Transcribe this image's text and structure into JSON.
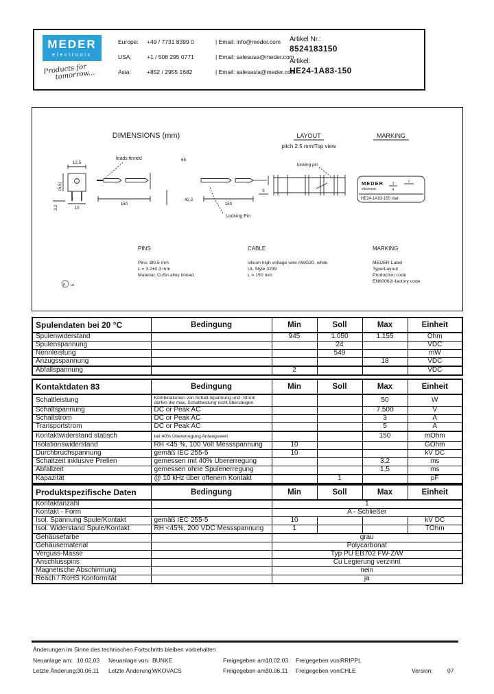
{
  "header": {
    "logo": {
      "line1": "MEDER",
      "line2": "electronic",
      "tagline1": "Products for",
      "tagline2": "tomorrow...",
      "brand_blue": "#2b9fd8"
    },
    "contacts": [
      {
        "region": "Europe:",
        "phone": "+49 / 7731 8399 0",
        "email": "| Email: info@meder.com"
      },
      {
        "region": "USA:",
        "phone": "+1 / 508 295 0771",
        "email": "| Email: salesusa@meder.com"
      },
      {
        "region": "Asia:",
        "phone": "+852 / 2955 1682",
        "email": "| Email: salesasia@meder.com"
      }
    ],
    "artikel_nr_label": "Artikel Nr.:",
    "artikel_nr": "8524183150",
    "artikel_label": "Artikel:",
    "artikel": "HE24-1A83-150"
  },
  "diagram": {
    "dimensions_title": "DIMENSIONS (mm)",
    "layout_title": "LAYOUT",
    "layout_subtitle": "pitch 2.5 mm/Top view",
    "layout_pin_note": "locking pin",
    "marking_title": "MARKING",
    "leads_note": "leads tinned",
    "locking_pin": "Locking Pin",
    "dims": {
      "body_w": "12,5",
      "body_h": "(5,5)",
      "pin_pitch": "10",
      "pin_len": "3,2",
      "lead_left": "150",
      "total": "65",
      "mid": "42,5",
      "lead_right": "150",
      "lock_offset": "5"
    },
    "mark_box": {
      "brand": "MEDER",
      "brand_sub": "electronic",
      "frac_top": "3",
      "frac_bot": "4",
      "frac_r": "1",
      "type_line": "HE24-1A83-150   /dat"
    },
    "pins": {
      "title": "PINS",
      "lines": [
        "Pins:  Ø0.5 mm",
        "L = 3.2±0.3 mm",
        "Material: CuSn alloy tinned"
      ]
    },
    "cable": {
      "title": "CABLE",
      "lines": [
        "silicon high voltage wire AWG20, white",
        "UL Style 3239",
        "L = 150 mm"
      ]
    },
    "marking": {
      "title": "MARKING",
      "lines": [
        "MEDER-Label",
        "Type/Layout",
        "Production code",
        "EN60062/-factory code"
      ]
    }
  },
  "tables": [
    {
      "title": "Spulendaten bei 20 °C",
      "headers": [
        "Bedingung",
        "Min",
        "Soll",
        "Max",
        "Einheit"
      ],
      "rows": [
        {
          "label": "Spulenwiderstand",
          "bedingung": "",
          "min": "945",
          "soll": "1.050",
          "max": "1.155",
          "einheit": "Ohm"
        },
        {
          "label": "Spulenspannung",
          "bedingung": "",
          "min": "",
          "soll": "24",
          "max": "",
          "einheit": "VDC"
        },
        {
          "label": "Nennleistung",
          "bedingung": "",
          "min": "",
          "soll": "549",
          "max": "",
          "einheit": "mW"
        },
        {
          "label": "Anzugsspannung",
          "bedingung": "",
          "min": "",
          "soll": "",
          "max": "18",
          "einheit": "VDC"
        },
        {
          "label": "Abfallspannung",
          "bedingung": "",
          "min": "2",
          "soll": "",
          "max": "",
          "einheit": "VDC",
          "thick_top": true
        }
      ]
    },
    {
      "title": "Kontaktdaten  83",
      "headers": [
        "Bedingung",
        "Min",
        "Soll",
        "Max",
        "Einheit"
      ],
      "rows": [
        {
          "label": "Schaltleistung",
          "bedingung": "Kombinationen von Schalt-Spannung und -Strom dürfen die max. Schaltleistung nicht übersteigen",
          "small": true,
          "min": "",
          "soll": "",
          "max": "50",
          "einheit": "W"
        },
        {
          "label": "Schaltspannung",
          "bedingung": "DC or Peak AC",
          "min": "",
          "soll": "",
          "max": "7.500",
          "einheit": "V"
        },
        {
          "label": "Schaltstrom",
          "bedingung": "DC or Peak AC",
          "min": "",
          "soll": "",
          "max": "3",
          "einheit": "A"
        },
        {
          "label": "Transportstrom",
          "bedingung": "DC or Peak AC",
          "min": "",
          "soll": "",
          "max": "5",
          "einheit": "A"
        },
        {
          "label": "Kontaktwiderstand statisch",
          "bedingung": "bei 40% Übererregung Anfangswert",
          "small": true,
          "min": "",
          "soll": "",
          "max": "150",
          "einheit": "mOhm",
          "thick_top": true
        },
        {
          "label": "Isolationswiderstand",
          "bedingung": "RH <45 %, 100 Volt Messspannung",
          "min": "10",
          "soll": "",
          "max": "",
          "einheit": "GOhm"
        },
        {
          "label": "Durchbruchspannung",
          "bedingung": "gemäß  IEC 255-5",
          "min": "10",
          "soll": "",
          "max": "",
          "einheit": "kV DC"
        },
        {
          "label": "Schaltzeit inklusive Prellen",
          "bedingung": "gemessen mit 40% Übererregung",
          "min": "",
          "soll": "",
          "max": "3,2",
          "einheit": "ms"
        },
        {
          "label": "Abfallzeit",
          "bedingung": "gemessen ohne Spulenerregung",
          "min": "",
          "soll": "",
          "max": "1,5",
          "einheit": "ms"
        },
        {
          "label": "Kapazität",
          "bedingung": "@ 10 kHz über offenem Kontakt",
          "min": "",
          "soll": "1",
          "max": "",
          "einheit": "pF",
          "thick_top": true
        }
      ]
    },
    {
      "title": "Produktspezifische Daten",
      "headers": [
        "Bedingung",
        "Min",
        "Soll",
        "Max",
        "Einheit"
      ],
      "rows": [
        {
          "label": "Kontaktanzahl",
          "bedingung": "",
          "span": "1"
        },
        {
          "label": "Kontakt - Form",
          "bedingung": "",
          "span": "A - Schließer"
        },
        {
          "label": "Isol. Spannung Spule/Kontakt",
          "bedingung": "gemäß  IEC 255-5",
          "min": "10",
          "soll": "",
          "max": "",
          "einheit": "kV DC"
        },
        {
          "label": "Isol. Widerstand Spule/Kontakt",
          "bedingung": "RH <45%, 200 VDC Messspannung",
          "min": "1",
          "soll": "",
          "max": "",
          "einheit": "TOhm"
        },
        {
          "label": "Gehäusefarbe",
          "bedingung": "",
          "span": "grau",
          "thick_top": true
        },
        {
          "label": "Gehäusematerial",
          "bedingung": "",
          "span": "Polycarbonat"
        },
        {
          "label": "Verguss-Masse",
          "bedingung": "",
          "span": "Typ PU EB702 FW-Z/W"
        },
        {
          "label": "Anschlusspins",
          "bedingung": "",
          "span": "Cu Legierung verzinnt"
        },
        {
          "label": "Magnetische Abschirmung",
          "bedingung": "",
          "span": "nein"
        },
        {
          "label": "Reach / RoHS Konformität",
          "bedingung": "",
          "span": "ja"
        }
      ]
    }
  ],
  "footer": {
    "disclaimer": "Änderungen im Sinne des technischen Fortschritts bleiben vorbehalten",
    "rows": [
      {
        "l1": "Neuanlage am:",
        "v1": "10.02.03",
        "l2": "Neuanlage von:",
        "v2": "BUNKE",
        "l3": "Freigegeben am:",
        "v3": "10.02.03",
        "l4": "Freigegeben von:",
        "v4": "RRIPPL"
      },
      {
        "l1": "Letzte Änderung:",
        "v1": "30.06.11",
        "l2": "Letzte Änderung:",
        "v2": "WKOVACS",
        "l3": "Freigegeben am:",
        "v3": "30.06.11",
        "l4": "Freigegeben von:",
        "v4": "CHLE",
        "l5": "Version:",
        "v5": "07"
      }
    ]
  }
}
